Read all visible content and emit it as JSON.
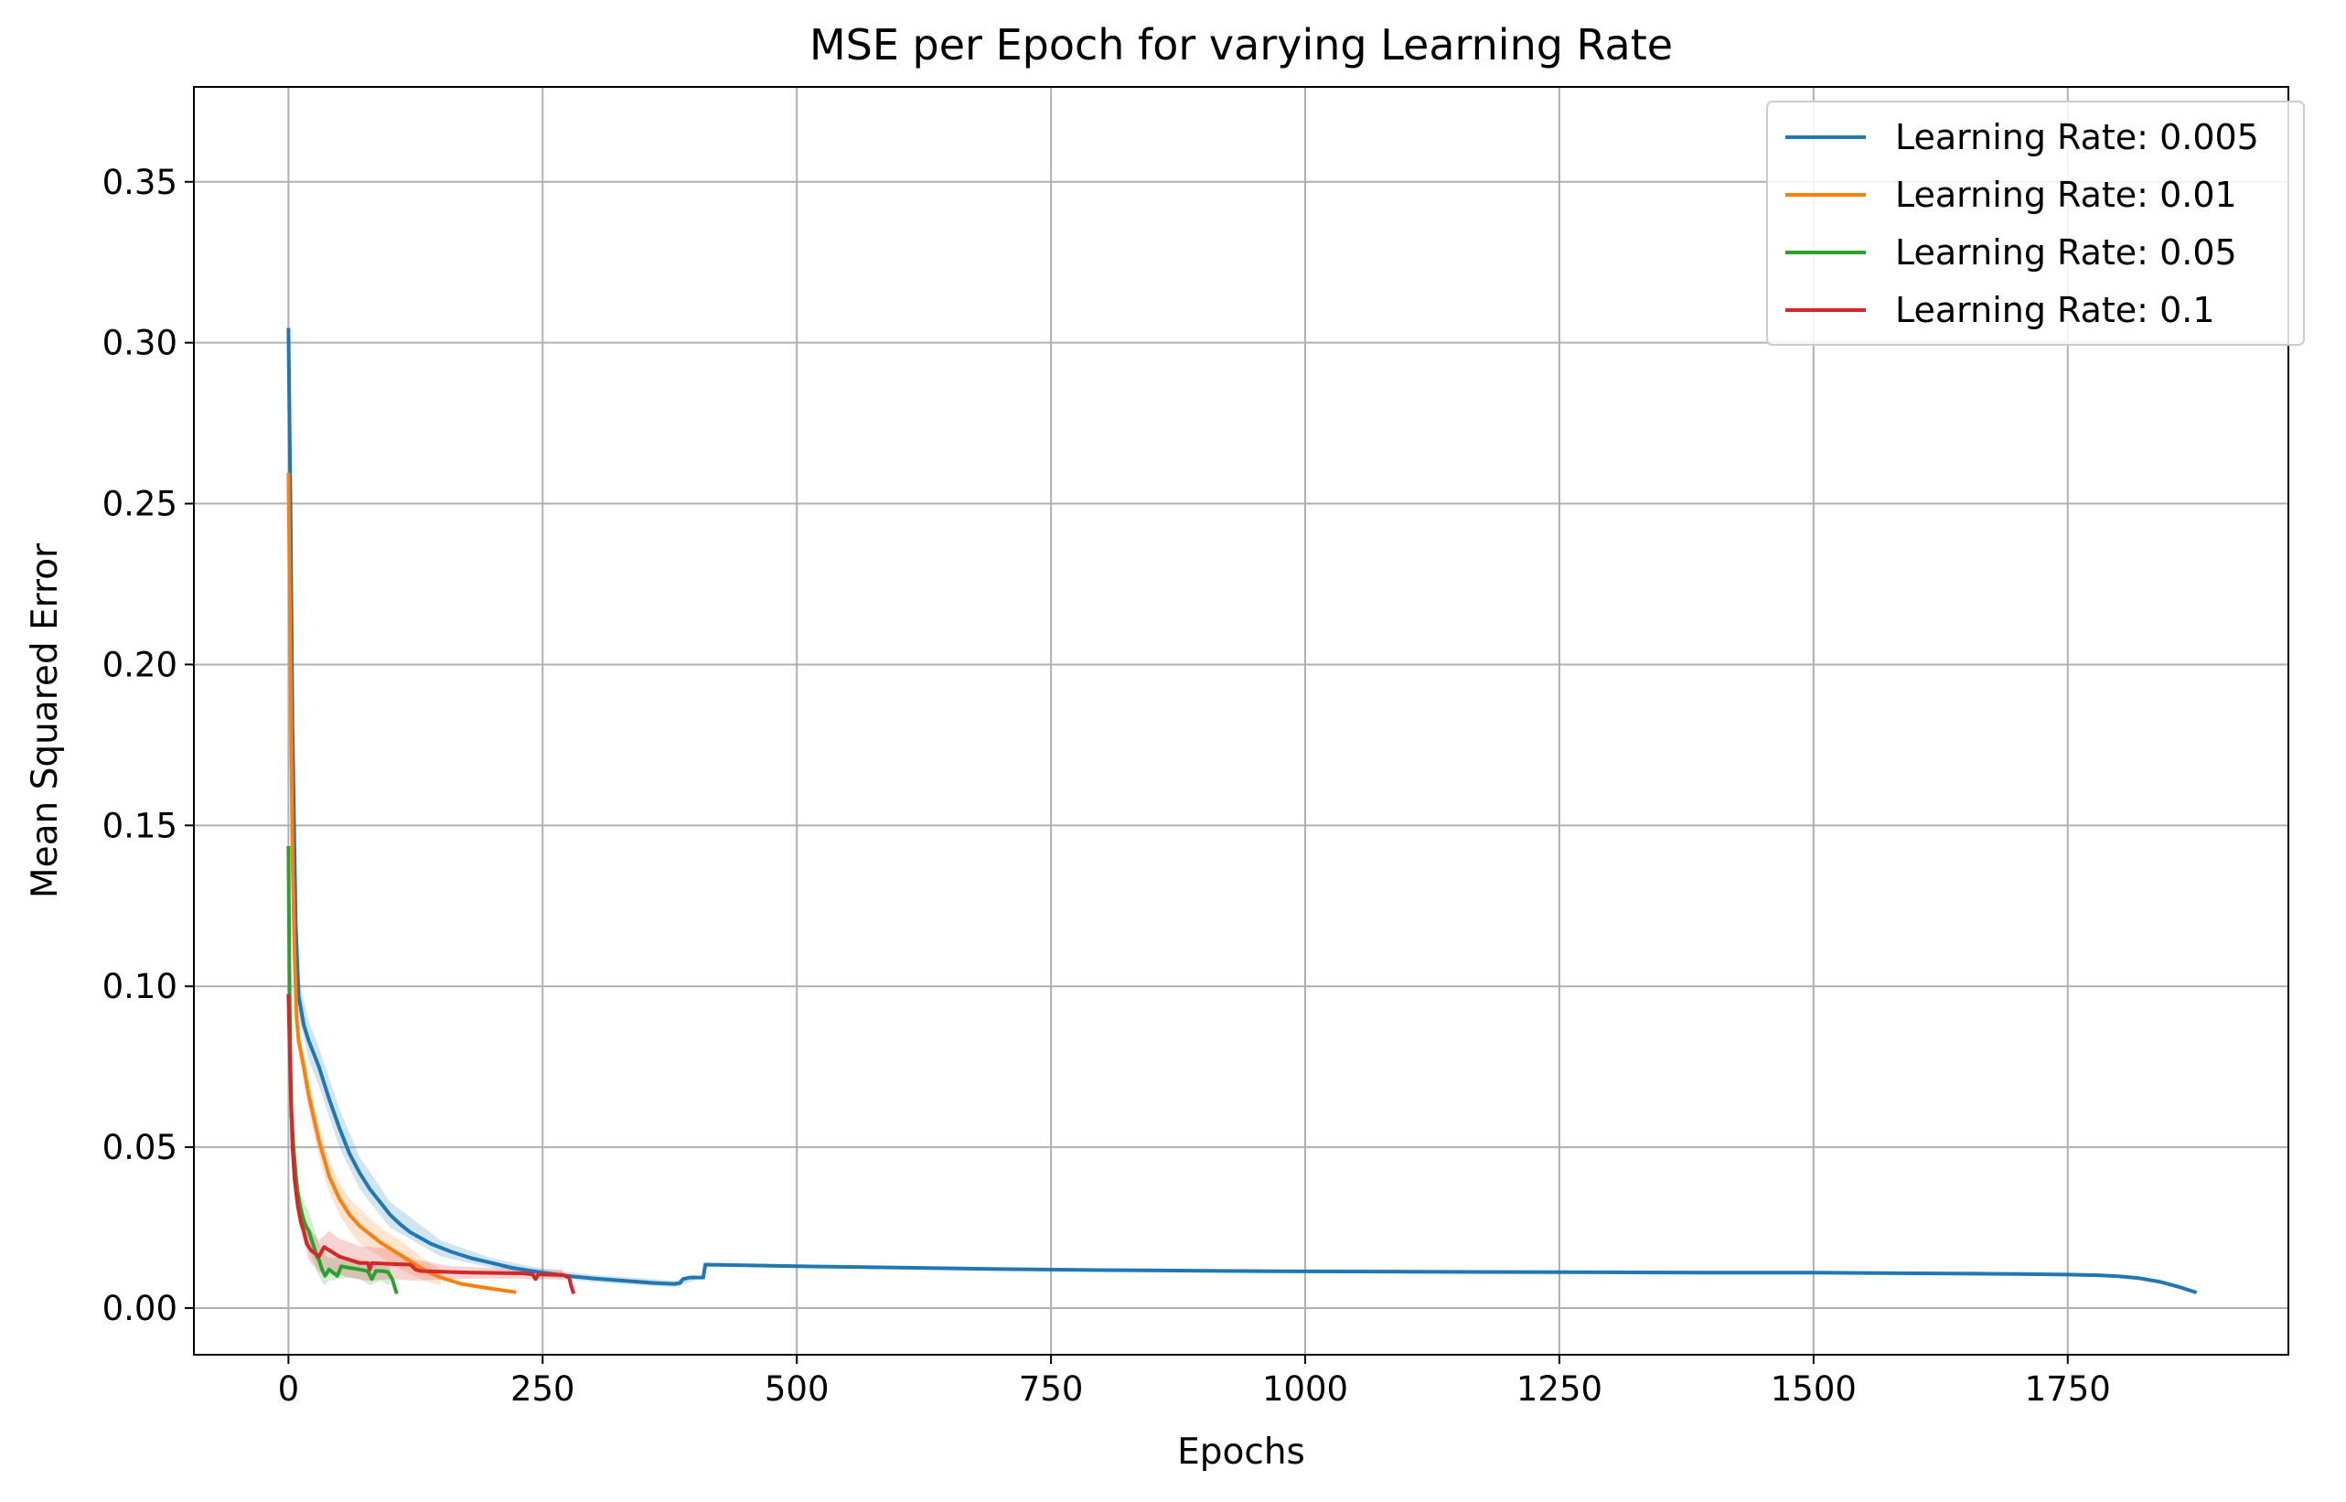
{
  "chart_data": {
    "type": "line",
    "title": "MSE per Epoch for varying Learning Rate",
    "xlabel": "Epochs",
    "ylabel": "Mean Squared Error",
    "xlim": [
      -93,
      1967
    ],
    "ylim": [
      -0.0145,
      0.3795
    ],
    "xticks": [
      0,
      250,
      500,
      750,
      1000,
      1250,
      1500,
      1750
    ],
    "xtick_labels": [
      "0",
      "250",
      "500",
      "750",
      "1000",
      "1250",
      "1500",
      "1750"
    ],
    "yticks": [
      0.0,
      0.05,
      0.1,
      0.15,
      0.2,
      0.25,
      0.3,
      0.35
    ],
    "ytick_labels": [
      "0.00",
      "0.05",
      "0.10",
      "0.15",
      "0.20",
      "0.25",
      "0.30",
      "0.35"
    ],
    "grid": true,
    "legend_position": "top-right",
    "series": [
      {
        "name": "Learning Rate: 0.005",
        "color": "#1f77b4",
        "points": [
          [
            0,
            0.304
          ],
          [
            2,
            0.25
          ],
          [
            4,
            0.18
          ],
          [
            7,
            0.12
          ],
          [
            10,
            0.097
          ],
          [
            15,
            0.088
          ],
          [
            20,
            0.083
          ],
          [
            30,
            0.075
          ],
          [
            40,
            0.065
          ],
          [
            50,
            0.056
          ],
          [
            60,
            0.048
          ],
          [
            70,
            0.042
          ],
          [
            80,
            0.037
          ],
          [
            90,
            0.033
          ],
          [
            100,
            0.029
          ],
          [
            110,
            0.026
          ],
          [
            120,
            0.0235
          ],
          [
            140,
            0.02
          ],
          [
            160,
            0.0175
          ],
          [
            180,
            0.0155
          ],
          [
            200,
            0.014
          ],
          [
            220,
            0.0125
          ],
          [
            250,
            0.011
          ],
          [
            280,
            0.0098
          ],
          [
            300,
            0.0092
          ],
          [
            330,
            0.0085
          ],
          [
            360,
            0.0078
          ],
          [
            380,
            0.0075
          ],
          [
            385,
            0.0078
          ],
          [
            388,
            0.009
          ],
          [
            395,
            0.0095
          ],
          [
            405,
            0.0095
          ],
          [
            408,
            0.0095
          ],
          [
            410,
            0.0135
          ],
          [
            450,
            0.0133
          ],
          [
            500,
            0.013
          ],
          [
            600,
            0.0126
          ],
          [
            700,
            0.0121
          ],
          [
            800,
            0.0118
          ],
          [
            900,
            0.0116
          ],
          [
            1000,
            0.0114
          ],
          [
            1100,
            0.0113
          ],
          [
            1200,
            0.0112
          ],
          [
            1300,
            0.0111
          ],
          [
            1400,
            0.011
          ],
          [
            1500,
            0.011
          ],
          [
            1600,
            0.0108
          ],
          [
            1700,
            0.0106
          ],
          [
            1750,
            0.0104
          ],
          [
            1780,
            0.0102
          ],
          [
            1800,
            0.0099
          ],
          [
            1820,
            0.0093
          ],
          [
            1840,
            0.0082
          ],
          [
            1860,
            0.0065
          ],
          [
            1875,
            0.005
          ]
        ],
        "band": [
          [
            0,
            0.304,
            0.304
          ],
          [
            10,
            0.091,
            0.103
          ],
          [
            20,
            0.077,
            0.089
          ],
          [
            30,
            0.069,
            0.081
          ],
          [
            50,
            0.05,
            0.062
          ],
          [
            70,
            0.037,
            0.047
          ],
          [
            100,
            0.025,
            0.033
          ],
          [
            150,
            0.016,
            0.021
          ],
          [
            200,
            0.0125,
            0.0155
          ],
          [
            250,
            0.0098,
            0.0122
          ],
          [
            300,
            0.0081,
            0.0103
          ],
          [
            350,
            0.007,
            0.0092
          ],
          [
            380,
            0.0065,
            0.0085
          ],
          [
            400,
            0.0085,
            0.0105
          ]
        ]
      },
      {
        "name": "Learning Rate: 0.01",
        "color": "#ff7f0e",
        "points": [
          [
            0,
            0.259
          ],
          [
            2,
            0.2
          ],
          [
            4,
            0.14
          ],
          [
            6,
            0.11
          ],
          [
            8,
            0.09
          ],
          [
            10,
            0.083
          ],
          [
            15,
            0.075
          ],
          [
            20,
            0.066
          ],
          [
            30,
            0.052
          ],
          [
            40,
            0.041
          ],
          [
            50,
            0.034
          ],
          [
            60,
            0.029
          ],
          [
            70,
            0.0255
          ],
          [
            80,
            0.023
          ],
          [
            90,
            0.0205
          ],
          [
            100,
            0.0185
          ],
          [
            110,
            0.0165
          ],
          [
            120,
            0.0145
          ],
          [
            130,
            0.0125
          ],
          [
            140,
            0.0108
          ],
          [
            150,
            0.0095
          ],
          [
            160,
            0.0085
          ],
          [
            170,
            0.0075
          ],
          [
            180,
            0.007
          ],
          [
            200,
            0.006
          ],
          [
            222,
            0.005
          ]
        ],
        "band": [
          [
            10,
            0.079,
            0.087
          ],
          [
            20,
            0.061,
            0.071
          ],
          [
            30,
            0.047,
            0.057
          ],
          [
            40,
            0.036,
            0.046
          ],
          [
            50,
            0.029,
            0.039
          ],
          [
            60,
            0.024,
            0.034
          ],
          [
            70,
            0.02,
            0.031
          ],
          [
            80,
            0.018,
            0.028
          ],
          [
            90,
            0.016,
            0.025
          ],
          [
            100,
            0.014,
            0.023
          ],
          [
            110,
            0.012,
            0.021
          ],
          [
            120,
            0.0105,
            0.0185
          ],
          [
            130,
            0.009,
            0.016
          ],
          [
            140,
            0.0078,
            0.0138
          ],
          [
            150,
            0.007,
            0.012
          ]
        ]
      },
      {
        "name": "Learning Rate: 0.05",
        "color": "#2ca02c",
        "points": [
          [
            0,
            0.143
          ],
          [
            1,
            0.1
          ],
          [
            2,
            0.075
          ],
          [
            3,
            0.06
          ],
          [
            5,
            0.05
          ],
          [
            7,
            0.042
          ],
          [
            9,
            0.036
          ],
          [
            12,
            0.031
          ],
          [
            15,
            0.027
          ],
          [
            18,
            0.025
          ],
          [
            20,
            0.024
          ],
          [
            22,
            0.022
          ],
          [
            25,
            0.019
          ],
          [
            28,
            0.016
          ],
          [
            30,
            0.015
          ],
          [
            33,
            0.012
          ],
          [
            36,
            0.01
          ],
          [
            40,
            0.012
          ],
          [
            44,
            0.011
          ],
          [
            48,
            0.01
          ],
          [
            52,
            0.013
          ],
          [
            60,
            0.0125
          ],
          [
            70,
            0.012
          ],
          [
            78,
            0.0115
          ],
          [
            82,
            0.009
          ],
          [
            86,
            0.0115
          ],
          [
            92,
            0.0115
          ],
          [
            98,
            0.0112
          ],
          [
            102,
            0.009
          ],
          [
            106,
            0.005
          ]
        ],
        "band": [
          [
            5,
            0.045,
            0.055
          ],
          [
            10,
            0.028,
            0.038
          ],
          [
            15,
            0.021,
            0.033
          ],
          [
            20,
            0.018,
            0.03
          ],
          [
            25,
            0.014,
            0.025
          ],
          [
            30,
            0.01,
            0.02
          ],
          [
            35,
            0.007,
            0.017
          ],
          [
            40,
            0.0085,
            0.0155
          ],
          [
            50,
            0.009,
            0.016
          ],
          [
            60,
            0.0095,
            0.0155
          ],
          [
            70,
            0.009,
            0.015
          ],
          [
            80,
            0.007,
            0.0145
          ],
          [
            90,
            0.0085,
            0.0145
          ],
          [
            100,
            0.007,
            0.0135
          ]
        ]
      },
      {
        "name": "Learning Rate: 0.1",
        "color": "#d62728",
        "points": [
          [
            0,
            0.097
          ],
          [
            2,
            0.07
          ],
          [
            4,
            0.05
          ],
          [
            6,
            0.04
          ],
          [
            9,
            0.032
          ],
          [
            12,
            0.027
          ],
          [
            15,
            0.024
          ],
          [
            18,
            0.02
          ],
          [
            22,
            0.018
          ],
          [
            26,
            0.017
          ],
          [
            30,
            0.016
          ],
          [
            35,
            0.019
          ],
          [
            40,
            0.018
          ],
          [
            50,
            0.016
          ],
          [
            60,
            0.015
          ],
          [
            70,
            0.014
          ],
          [
            78,
            0.014
          ],
          [
            80,
            0.012
          ],
          [
            82,
            0.014
          ],
          [
            100,
            0.0137
          ],
          [
            120,
            0.0135
          ],
          [
            125,
            0.012
          ],
          [
            130,
            0.0115
          ],
          [
            180,
            0.011
          ],
          [
            230,
            0.0108
          ],
          [
            240,
            0.0105
          ],
          [
            243,
            0.009
          ],
          [
            246,
            0.0105
          ],
          [
            270,
            0.0103
          ],
          [
            276,
            0.0095
          ],
          [
            278,
            0.007
          ],
          [
            280,
            0.005
          ]
        ],
        "band": [
          [
            10,
            0.026,
            0.034
          ],
          [
            20,
            0.015,
            0.025
          ],
          [
            30,
            0.011,
            0.021
          ],
          [
            40,
            0.012,
            0.024
          ],
          [
            50,
            0.0105,
            0.0215
          ],
          [
            60,
            0.0095,
            0.0205
          ],
          [
            70,
            0.0088,
            0.0192
          ],
          [
            80,
            0.0085,
            0.019
          ],
          [
            100,
            0.009,
            0.0185
          ],
          [
            125,
            0.0085,
            0.015
          ],
          [
            160,
            0.009,
            0.013
          ],
          [
            200,
            0.0092,
            0.0125
          ],
          [
            240,
            0.009,
            0.0122
          ],
          [
            270,
            0.0088,
            0.012
          ]
        ]
      }
    ]
  }
}
